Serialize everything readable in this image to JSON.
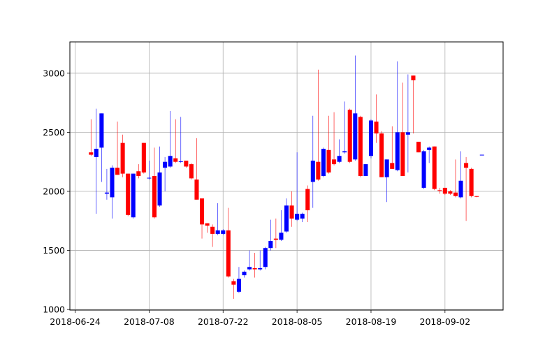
{
  "chart_data": {
    "type": "candlestick",
    "x": [
      "2018-06-27",
      "2018-06-28",
      "2018-06-29",
      "2018-06-30",
      "2018-07-01",
      "2018-07-02",
      "2018-07-03",
      "2018-07-04",
      "2018-07-05",
      "2018-07-06",
      "2018-07-07",
      "2018-07-08",
      "2018-07-09",
      "2018-07-10",
      "2018-07-11",
      "2018-07-12",
      "2018-07-13",
      "2018-07-14",
      "2018-07-15",
      "2018-07-16",
      "2018-07-17",
      "2018-07-18",
      "2018-07-19",
      "2018-07-20",
      "2018-07-21",
      "2018-07-22",
      "2018-07-23",
      "2018-07-24",
      "2018-07-25",
      "2018-07-26",
      "2018-07-27",
      "2018-07-28",
      "2018-07-29",
      "2018-07-30",
      "2018-07-31",
      "2018-08-01",
      "2018-08-02",
      "2018-08-03",
      "2018-08-04",
      "2018-08-05",
      "2018-08-06",
      "2018-08-07",
      "2018-08-08",
      "2018-08-09",
      "2018-08-10",
      "2018-08-11",
      "2018-08-12",
      "2018-08-13",
      "2018-08-14",
      "2018-08-15",
      "2018-08-16",
      "2018-08-17",
      "2018-08-18",
      "2018-08-19",
      "2018-08-20",
      "2018-08-21",
      "2018-08-22",
      "2018-08-23",
      "2018-08-24",
      "2018-08-25",
      "2018-08-26",
      "2018-08-27",
      "2018-08-28",
      "2018-08-29",
      "2018-08-30",
      "2018-08-31",
      "2018-09-01",
      "2018-09-02",
      "2018-09-03",
      "2018-09-04",
      "2018-09-05",
      "2018-09-06",
      "2018-09-07",
      "2018-09-08",
      "2018-09-09"
    ],
    "open": [
      2330,
      2290,
      2370,
      1980,
      1950,
      2200,
      2410,
      2150,
      1780,
      2170,
      2410,
      2110,
      2130,
      1880,
      2200,
      2210,
      2280,
      2250,
      2260,
      2230,
      2100,
      1940,
      1730,
      1700,
      1640,
      1640,
      1670,
      1240,
      1150,
      1290,
      1340,
      1350,
      1340,
      1360,
      1520,
      1600,
      1590,
      1660,
      1880,
      1760,
      1770,
      2020,
      2080,
      2250,
      2130,
      2350,
      2270,
      2250,
      2330,
      2690,
      2270,
      2630,
      2130,
      2300,
      2590,
      2490,
      2120,
      2240,
      2180,
      2500,
      2480,
      2980,
      2420,
      2030,
      2350,
      2380,
      2010,
      2030,
      2000,
      1990,
      1950,
      2240,
      2190,
      1960,
      2305
    ],
    "high": [
      2610,
      2700,
      2660,
      2190,
      2220,
      2590,
      2480,
      2150,
      2150,
      2230,
      2410,
      2260,
      2370,
      2380,
      2290,
      2680,
      2610,
      2630,
      2260,
      2240,
      2450,
      1940,
      1730,
      1720,
      1900,
      1680,
      1860,
      1260,
      1360,
      1330,
      1500,
      1480,
      1500,
      1530,
      1760,
      1770,
      1840,
      1940,
      2000,
      2330,
      1820,
      2050,
      2640,
      3030,
      2370,
      2640,
      2670,
      2440,
      2760,
      2700,
      3150,
      2640,
      2230,
      2610,
      2820,
      2510,
      2270,
      2550,
      3100,
      2920,
      2990,
      2980,
      2420,
      2350,
      2380,
      2380,
      2030,
      2030,
      2010,
      2270,
      2340,
      2290,
      2200,
      1960,
      2310
    ],
    "low": [
      2300,
      1810,
      2080,
      1930,
      1770,
      2140,
      2120,
      1790,
      1770,
      2110,
      2150,
      2100,
      1770,
      1870,
      2000,
      2200,
      2240,
      2240,
      2200,
      2100,
      1930,
      1600,
      1650,
      1530,
      1630,
      1630,
      1270,
      1090,
      1140,
      1270,
      1330,
      1270,
      1330,
      1340,
      1500,
      1520,
      1580,
      1650,
      1700,
      1750,
      1740,
      1740,
      1860,
      2090,
      2120,
      2150,
      2220,
      2240,
      2320,
      2240,
      2260,
      2120,
      2130,
      2280,
      2410,
      2120,
      1910,
      2190,
      2170,
      2130,
      2160,
      2490,
      2330,
      2020,
      2240,
      2010,
      1980,
      1970,
      1970,
      1950,
      1940,
      1750,
      1950,
      1950,
      2305
    ],
    "close": [
      2310,
      2360,
      2660,
      1990,
      2200,
      2140,
      2150,
      1800,
      2150,
      2130,
      2160,
      2115,
      1780,
      2160,
      2250,
      2300,
      2250,
      2255,
      2210,
      2110,
      1930,
      1720,
      1710,
      1640,
      1670,
      1670,
      1280,
      1210,
      1260,
      1320,
      1360,
      1340,
      1350,
      1520,
      1580,
      1590,
      1650,
      1880,
      1770,
      1810,
      1810,
      1840,
      2260,
      2100,
      2360,
      2160,
      2230,
      2300,
      2340,
      2250,
      2660,
      2130,
      2230,
      2600,
      2490,
      2120,
      2270,
      2190,
      2500,
      2130,
      2500,
      2940,
      2330,
      2340,
      2370,
      2020,
      2005,
      1980,
      1980,
      1960,
      2090,
      2200,
      1960,
      1955,
      2310
    ],
    "up_color": "#0000ff",
    "down_color": "#ff0000",
    "xlim": [
      "2018-06-23",
      "2018-09-13"
    ],
    "xticks": [
      "2018-06-24",
      "2018-07-08",
      "2018-07-22",
      "2018-08-05",
      "2018-08-19",
      "2018-09-02"
    ],
    "ylim": [
      995,
      3265
    ],
    "yticks": [
      1000,
      1500,
      2000,
      2500,
      3000
    ],
    "grid": true
  }
}
